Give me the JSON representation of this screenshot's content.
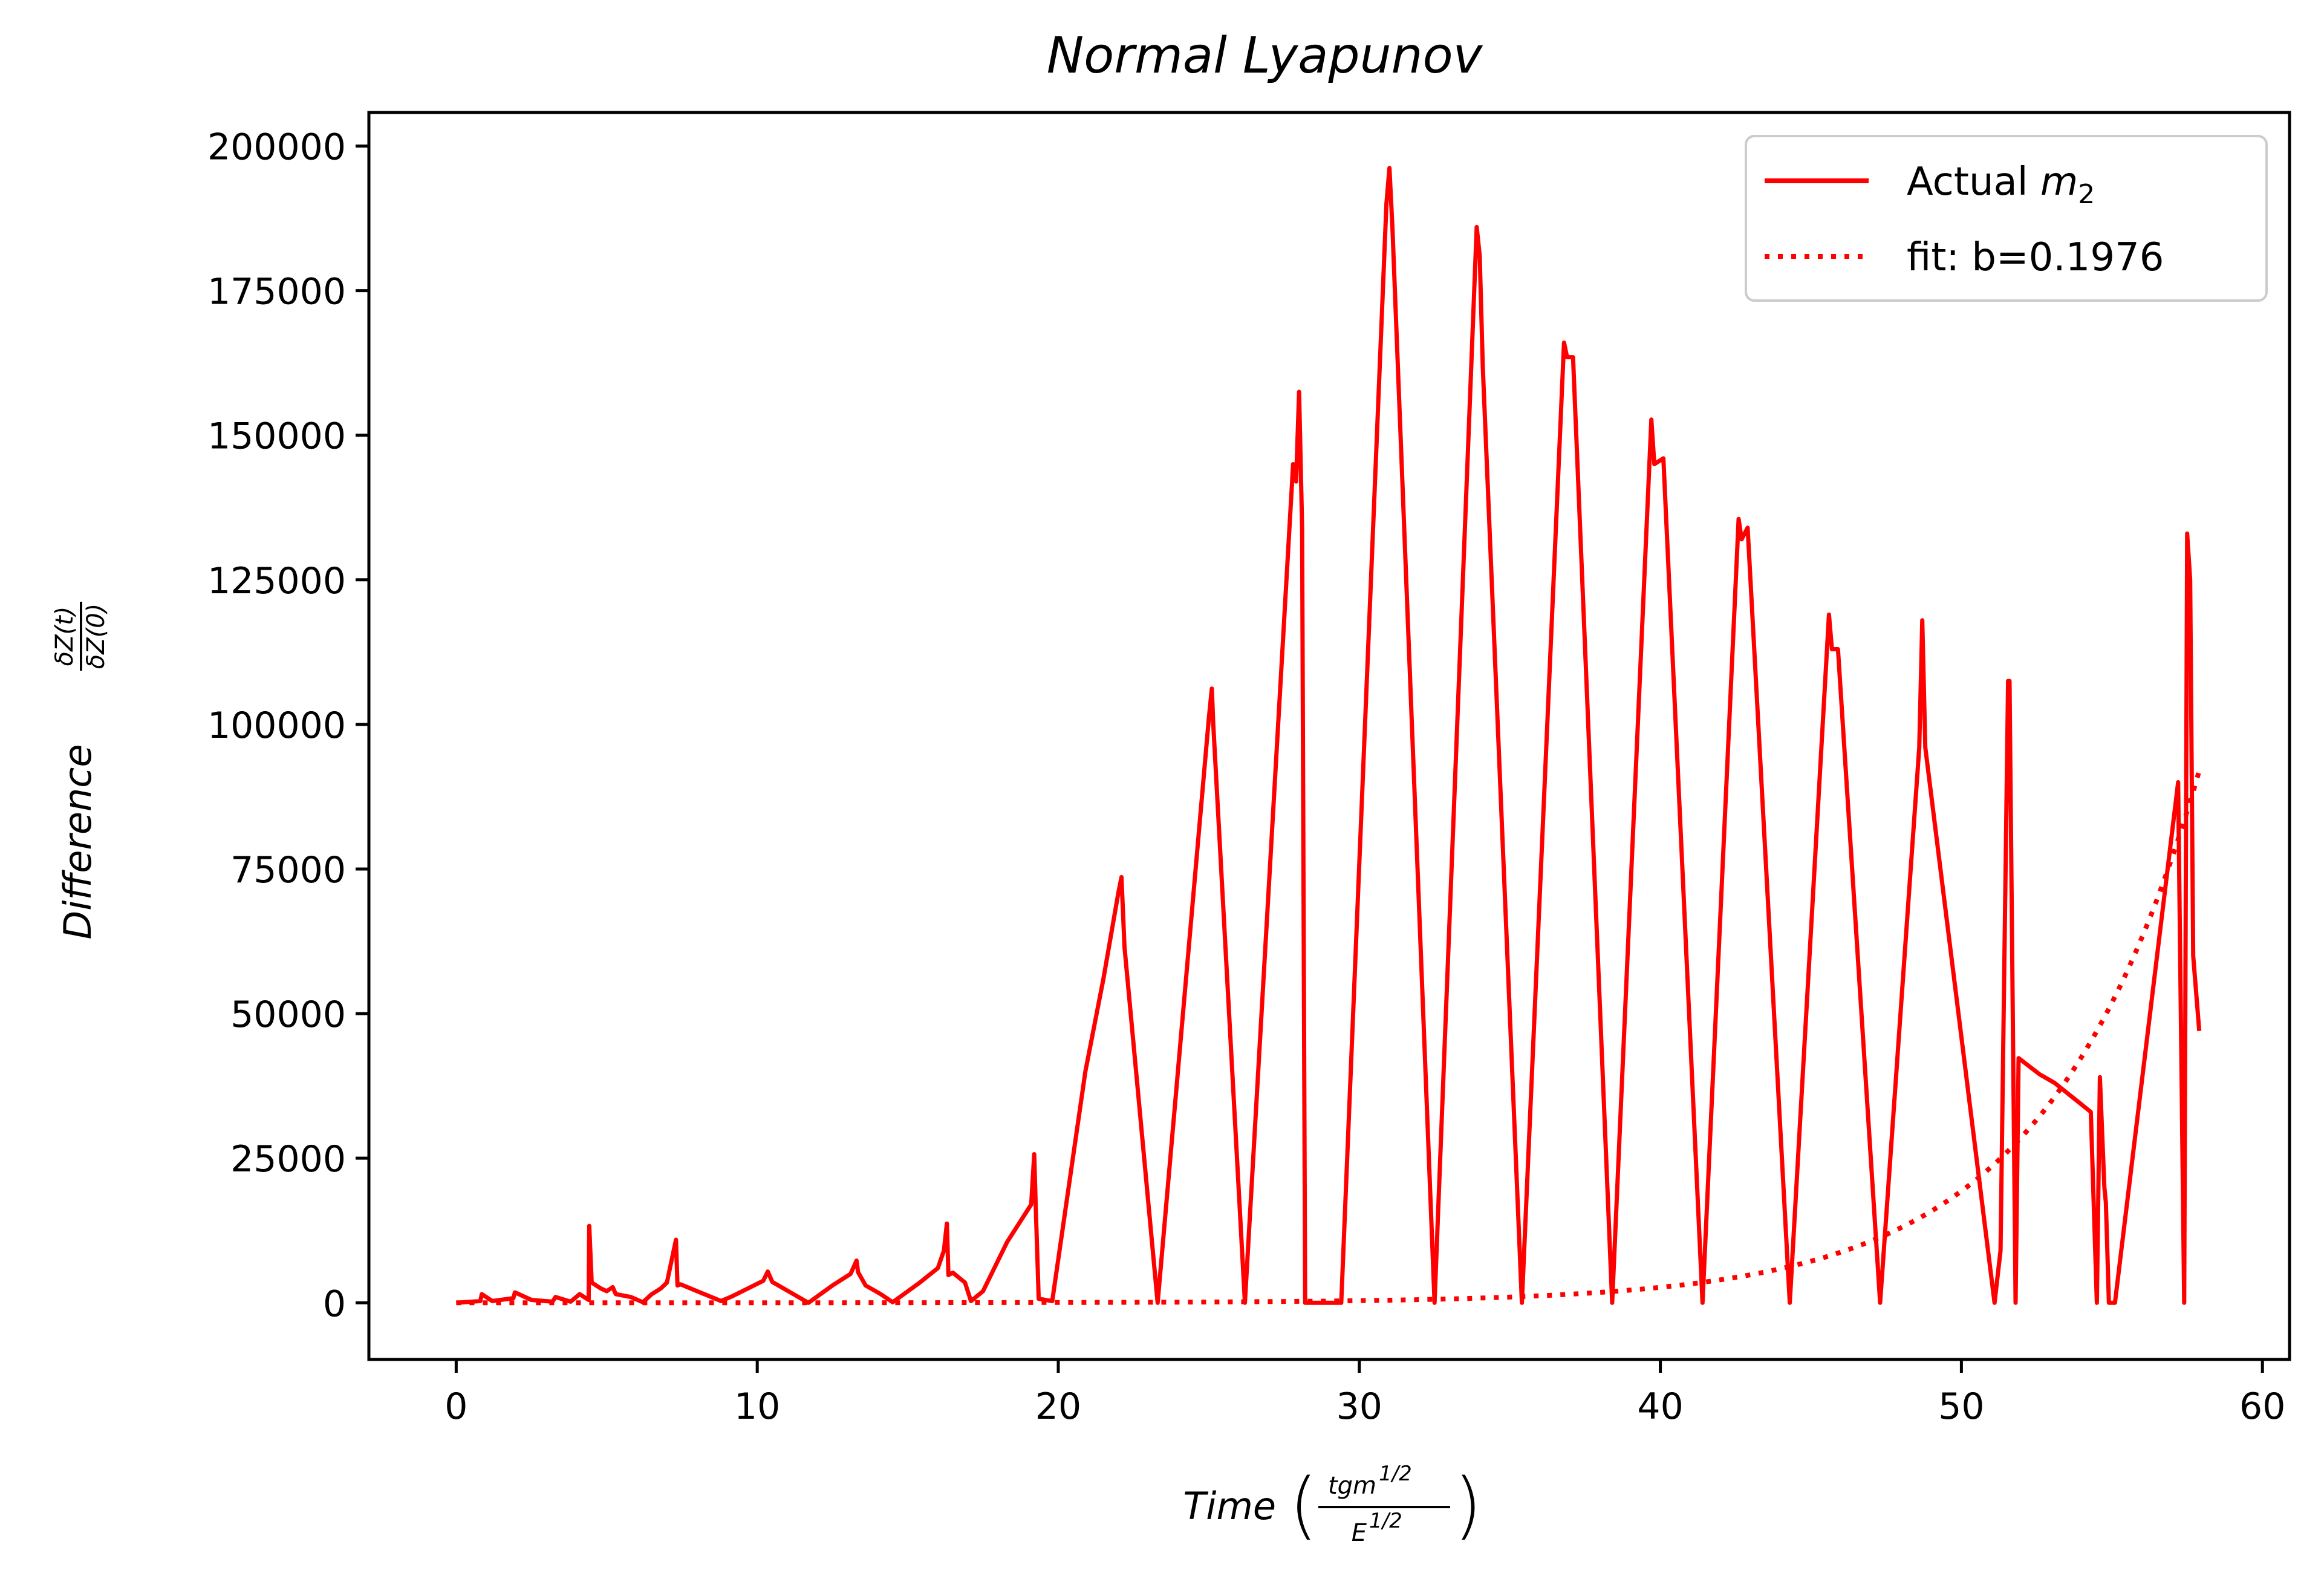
{
  "chart_data": {
    "type": "line",
    "title": "Normal Lyapunov",
    "xlabel": "Time",
    "xlabel_fraction": {
      "numerator": "tgm",
      "numerator_exp": "1/2",
      "denominator": "E",
      "denominator_exp": "1/2"
    },
    "ylabel": "Difference",
    "ylabel_fraction": {
      "numerator": "δZ(t)",
      "denominator": "δZ(0)"
    },
    "xlim": [
      -2.9,
      60.9
    ],
    "ylim": [
      -9800,
      205800
    ],
    "xticks": [
      0,
      10,
      20,
      30,
      40,
      50,
      60
    ],
    "xtick_labels": [
      "0",
      "10",
      "20",
      "30",
      "40",
      "50",
      "60"
    ],
    "yticks": [
      0,
      25000,
      50000,
      75000,
      100000,
      125000,
      150000,
      175000,
      200000
    ],
    "ytick_labels": [
      "0",
      "25000",
      "50000",
      "75000",
      "100000",
      "125000",
      "150000",
      "175000",
      "200000"
    ],
    "grid": false,
    "legend_position": "top-right",
    "series": [
      {
        "name": "Actual m2",
        "legend_label": "Actual ",
        "legend_math": "m",
        "legend_sub": "2",
        "style": "solid",
        "color": "#ff0000",
        "x": [
          0,
          0.8,
          0.85,
          1.2,
          1.9,
          1.95,
          2.5,
          3.2,
          3.3,
          3.8,
          4.1,
          4.4,
          4.42,
          4.5,
          4.8,
          5,
          5.2,
          5.3,
          5.8,
          6.2,
          6.5,
          6.8,
          7,
          7.3,
          7.35,
          7.45,
          8.8,
          9.2,
          10.2,
          10.35,
          10.5,
          11.2,
          11.7,
          12.5,
          13.1,
          13.3,
          13.35,
          13.6,
          14.1,
          14.5,
          15.4,
          16,
          16.2,
          16.3,
          16.35,
          16.5,
          16.9,
          17.1,
          17.5,
          18.3,
          19.1,
          19.2,
          19.25,
          19.35,
          19.8,
          20.9,
          21.5,
          22,
          22.1,
          22.2,
          23.3,
          25,
          25.1,
          25.15,
          26.2,
          27.8,
          27.9,
          28,
          28.1,
          28.2,
          29.4,
          30.9,
          31,
          31.1,
          32.5,
          33.9,
          34,
          34.1,
          35.4,
          36.8,
          36.9,
          37.1,
          38.4,
          39.7,
          39.8,
          40.1,
          41.4,
          42.6,
          42.7,
          42.9,
          44.3,
          45.6,
          45.7,
          45.9,
          47.3,
          48.6,
          48.7,
          48.8,
          51.1,
          51.3,
          51.55,
          51.6,
          51.8,
          51.9,
          52.6,
          53.1,
          54.3,
          54.5,
          54.6,
          54.75,
          54.8,
          54.9,
          55.1,
          57.2,
          57.4,
          57.5,
          57.6,
          57.7,
          57.9
        ],
        "y": [
          0,
          300,
          1500,
          300,
          800,
          1800,
          500,
          200,
          1000,
          200,
          1500,
          500,
          13300,
          3500,
          2500,
          2000,
          2700,
          1500,
          1000,
          100,
          1500,
          2500,
          3500,
          10900,
          3000,
          3200,
          300,
          1200,
          3800,
          5400,
          3600,
          1500,
          0,
          3000,
          5000,
          7300,
          5300,
          3000,
          1500,
          100,
          3500,
          6000,
          9000,
          13700,
          4800,
          5200,
          3500,
          300,
          2000,
          10500,
          17000,
          25700,
          17000,
          700,
          300,
          40000,
          56000,
          71000,
          73600,
          61500,
          0,
          101000,
          106200,
          100000,
          0,
          145000,
          142000,
          157500,
          134000,
          0,
          0,
          190000,
          196200,
          186000,
          0,
          186000,
          181000,
          162000,
          0,
          166000,
          163500,
          163500,
          0,
          152700,
          145000,
          146000,
          0,
          135500,
          132000,
          134000,
          0,
          119000,
          113000,
          113000,
          0,
          96000,
          118000,
          96000,
          0,
          9000,
          107500,
          107500,
          0,
          42300,
          39500,
          38000,
          33000,
          0,
          39000,
          20000,
          17300,
          0,
          0,
          90000,
          0,
          133000,
          125000,
          60000,
          47000
        ]
      },
      {
        "name": "fit: b=0.1976",
        "legend_label": "fit: b=0.1976",
        "style": "dotted",
        "color": "#ff0000",
        "b": 0.1976,
        "x_range": [
          0,
          57.9
        ]
      }
    ]
  }
}
